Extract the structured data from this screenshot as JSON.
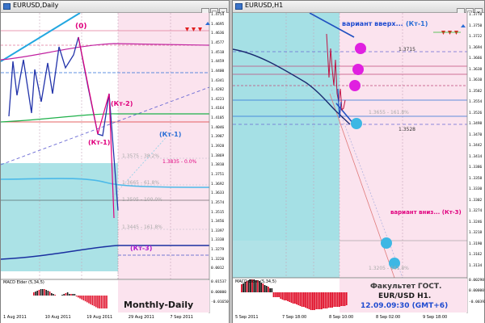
{
  "left_window": {
    "title": "EURUSD,Daily",
    "buttons": [
      "_",
      "□",
      "x"
    ],
    "price_scale": [
      "1.4754",
      "1.4695",
      "1.4636",
      "1.4577",
      "1.4518",
      "1.4459",
      "1.4400",
      "1.4341",
      "1.4282",
      "1.4223",
      "1.4164",
      "1.4105",
      "1.4046",
      "1.3987",
      "1.3928",
      "1.3869",
      "1.3810",
      "1.3751",
      "1.3692",
      "1.3633",
      "1.3574",
      "1.3515",
      "1.3456",
      "1.3397",
      "1.3338",
      "1.3279",
      "1.3220",
      "0.0012"
    ],
    "macd_label": "MACD Elder (5,34,5)",
    "macd_scale": [
      "0.01537",
      "0.00000",
      "-0.01650"
    ],
    "time_labels": [
      "1 Aug 2011",
      "10 Aug 2011",
      "19 Aug 2011",
      "29 Aug 2011",
      "7 Sep 2011"
    ],
    "annotations": {
      "zero": "(0)",
      "kt2": "(Кт-2)",
      "kt1_left": "(Кт-1)",
      "kt1_right": "(Кт-1)",
      "kt3": "(Кт-3)",
      "fib1": "1.3835 - 0.0%",
      "fib2": "1.3665 - 61.8%",
      "fib3": "1.3505 - 100.0%",
      "fib4": "1.3445 - 161.8%",
      "fib5": "1.3575 - 38.2%",
      "monthly": "Monthly-Daily"
    }
  },
  "right_window": {
    "title": "EURUSD,H1",
    "buttons": [
      "_",
      "□",
      "x"
    ],
    "price_scale": [
      "1.3778",
      "1.3750",
      "1.3722",
      "1.3694",
      "1.3666",
      "1.3638",
      "1.3610",
      "1.3582",
      "1.3554",
      "1.3526",
      "1.3498",
      "1.3470",
      "1.3442",
      "1.3414",
      "1.3386",
      "1.3358",
      "1.3330",
      "1.3302",
      "1.3274",
      "1.3246",
      "1.3218",
      "1.3190",
      "1.3162",
      "1.3134"
    ],
    "macd_label": "MACD Elder (5,34,5)",
    "macd_scale": [
      "0.00298",
      "0.00000",
      "-0.00392"
    ],
    "time_labels": [
      "5 Sep 2011",
      "7 Sep 18:00",
      "8 Sep 10:00",
      "8 Sep 02:00",
      "9 Sep 18:00"
    ],
    "annotations": {
      "kt1": "(Кт-1)",
      "up": "вариант вверх...",
      "down": "вариант вниз... (Кт-3)",
      "lvl1": "1.3715",
      "lvl2": "1.3528",
      "lvl3": "1.3655 - 161.8%",
      "lvl4": "1.3205 - 161.8%",
      "footer1": "Факультет ГОСТ.",
      "footer2": "EUR/USD H1.",
      "footer3": "12.09.09:30 (GMT+6)"
    }
  },
  "colors": {
    "accent_pink": "#e0007e",
    "accent_blue": "#1e6fd9",
    "dark_blue": "#0a2a7a",
    "bull_green": "#2db82d",
    "bear_red": "#e0102a",
    "cyan_zone": "#7fd1d8",
    "circle_magenta": "#e020e0",
    "circle_cyan": "#3db7e4"
  }
}
